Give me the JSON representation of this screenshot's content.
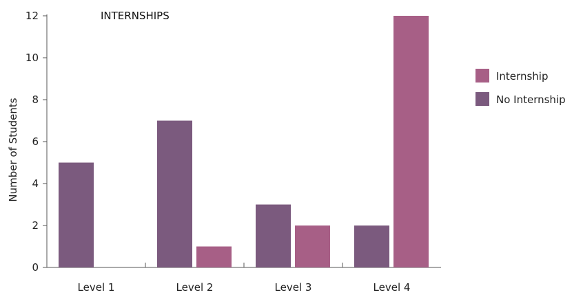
{
  "chart_data": {
    "type": "bar",
    "title": "INTERNSHIPS",
    "ylabel": "Number of Students",
    "xlabel": "",
    "categories": [
      "Level 1",
      "Level 2",
      "Level 3",
      "Level 4"
    ],
    "series": [
      {
        "name": "No Internship",
        "color": "#7b5a7e",
        "values": [
          5,
          7,
          3,
          2
        ]
      },
      {
        "name": "Internship",
        "color": "#a75f86",
        "values": [
          0,
          1,
          2,
          12
        ]
      }
    ],
    "ylim": [
      0,
      12
    ],
    "yticks": [
      0,
      2,
      4,
      6,
      8,
      10,
      12
    ],
    "legend_position": "right",
    "legend_order": [
      "Internship",
      "No Internship"
    ],
    "grid": false
  }
}
